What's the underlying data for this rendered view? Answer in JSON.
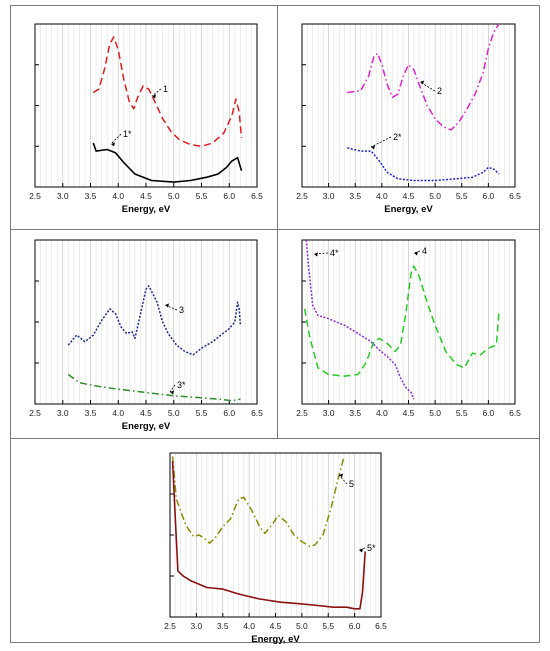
{
  "chart_data": [
    {
      "type": "line",
      "xlabel": "Energy, eV",
      "xlim": [
        2.5,
        6.5
      ],
      "xticks": [
        2.5,
        3.0,
        3.5,
        4.0,
        4.5,
        5.0,
        5.5,
        6.0,
        6.5
      ],
      "ylim": [
        0,
        1
      ],
      "series": [
        {
          "name": "1",
          "color": "#e41a1c",
          "dash": "long-dash",
          "points": [
            [
              3.55,
              0.58
            ],
            [
              3.65,
              0.6
            ],
            [
              3.75,
              0.72
            ],
            [
              3.85,
              0.88
            ],
            [
              3.92,
              0.92
            ],
            [
              4.0,
              0.84
            ],
            [
              4.1,
              0.66
            ],
            [
              4.2,
              0.52
            ],
            [
              4.28,
              0.48
            ],
            [
              4.35,
              0.55
            ],
            [
              4.45,
              0.62
            ],
            [
              4.55,
              0.6
            ],
            [
              4.65,
              0.53
            ],
            [
              4.8,
              0.42
            ],
            [
              4.95,
              0.34
            ],
            [
              5.1,
              0.29
            ],
            [
              5.3,
              0.26
            ],
            [
              5.5,
              0.25
            ],
            [
              5.7,
              0.27
            ],
            [
              5.9,
              0.33
            ],
            [
              6.05,
              0.44
            ],
            [
              6.12,
              0.54
            ],
            [
              6.18,
              0.46
            ],
            [
              6.22,
              0.3
            ]
          ]
        },
        {
          "name": "1*",
          "color": "#000000",
          "dash": "solid",
          "points": [
            [
              3.55,
              0.27
            ],
            [
              3.6,
              0.22
            ],
            [
              3.8,
              0.23
            ],
            [
              3.95,
              0.21
            ],
            [
              4.1,
              0.15
            ],
            [
              4.3,
              0.08
            ],
            [
              4.6,
              0.04
            ],
            [
              5.0,
              0.03
            ],
            [
              5.3,
              0.04
            ],
            [
              5.6,
              0.06
            ],
            [
              5.8,
              0.08
            ],
            [
              5.95,
              0.12
            ],
            [
              6.05,
              0.16
            ],
            [
              6.15,
              0.18
            ],
            [
              6.22,
              0.1
            ]
          ]
        }
      ],
      "labels": [
        "1",
        "1*"
      ]
    },
    {
      "type": "line",
      "xlabel": "Energy, eV",
      "xlim": [
        2.5,
        6.5
      ],
      "xticks": [
        2.5,
        3.0,
        3.5,
        4.0,
        4.5,
        5.0,
        5.5,
        6.0,
        6.5
      ],
      "ylim": [
        0,
        1
      ],
      "series": [
        {
          "name": "2",
          "color": "#dd22cc",
          "dash": "dash-dot",
          "points": [
            [
              3.35,
              0.58
            ],
            [
              3.6,
              0.59
            ],
            [
              3.75,
              0.68
            ],
            [
              3.85,
              0.8
            ],
            [
              3.92,
              0.82
            ],
            [
              4.0,
              0.75
            ],
            [
              4.1,
              0.63
            ],
            [
              4.2,
              0.55
            ],
            [
              4.3,
              0.57
            ],
            [
              4.4,
              0.68
            ],
            [
              4.5,
              0.75
            ],
            [
              4.6,
              0.72
            ],
            [
              4.7,
              0.63
            ],
            [
              4.85,
              0.5
            ],
            [
              5.0,
              0.42
            ],
            [
              5.15,
              0.37
            ],
            [
              5.3,
              0.35
            ],
            [
              5.45,
              0.4
            ],
            [
              5.6,
              0.48
            ],
            [
              5.75,
              0.57
            ],
            [
              5.9,
              0.7
            ],
            [
              6.0,
              0.85
            ],
            [
              6.1,
              0.95
            ],
            [
              6.2,
              1.0
            ]
          ]
        },
        {
          "name": "2*",
          "color": "#1f24cc",
          "dash": "dotted",
          "points": [
            [
              3.35,
              0.24
            ],
            [
              3.6,
              0.22
            ],
            [
              3.8,
              0.22
            ],
            [
              3.95,
              0.16
            ],
            [
              4.1,
              0.09
            ],
            [
              4.3,
              0.05
            ],
            [
              4.6,
              0.04
            ],
            [
              5.0,
              0.04
            ],
            [
              5.4,
              0.05
            ],
            [
              5.7,
              0.06
            ],
            [
              5.9,
              0.09
            ],
            [
              6.0,
              0.12
            ],
            [
              6.1,
              0.11
            ],
            [
              6.2,
              0.08
            ]
          ]
        }
      ],
      "labels": [
        "2",
        "2*"
      ]
    },
    {
      "type": "line",
      "xlabel": "Energy, eV",
      "xlim": [
        2.5,
        6.5
      ],
      "xticks": [
        2.5,
        3.0,
        3.5,
        4.0,
        4.5,
        5.0,
        5.5,
        6.0,
        6.5
      ],
      "ylim": [
        0,
        1
      ],
      "series": [
        {
          "name": "3",
          "color": "#1a2a8c",
          "dash": "dotted",
          "points": [
            [
              3.1,
              0.36
            ],
            [
              3.25,
              0.42
            ],
            [
              3.4,
              0.38
            ],
            [
              3.55,
              0.42
            ],
            [
              3.7,
              0.51
            ],
            [
              3.85,
              0.58
            ],
            [
              3.95,
              0.55
            ],
            [
              4.05,
              0.47
            ],
            [
              4.15,
              0.43
            ],
            [
              4.25,
              0.44
            ],
            [
              4.3,
              0.4
            ],
            [
              4.4,
              0.55
            ],
            [
              4.5,
              0.7
            ],
            [
              4.55,
              0.72
            ],
            [
              4.7,
              0.62
            ],
            [
              4.8,
              0.5
            ],
            [
              4.9,
              0.43
            ],
            [
              5.05,
              0.36
            ],
            [
              5.2,
              0.32
            ],
            [
              5.35,
              0.3
            ],
            [
              5.5,
              0.34
            ],
            [
              5.7,
              0.38
            ],
            [
              5.85,
              0.42
            ],
            [
              6.0,
              0.46
            ],
            [
              6.1,
              0.5
            ],
            [
              6.15,
              0.62
            ],
            [
              6.18,
              0.58
            ],
            [
              6.2,
              0.48
            ]
          ]
        },
        {
          "name": "3*",
          "color": "#2e8b2e",
          "dash": "dash-dot",
          "points": [
            [
              3.1,
              0.18
            ],
            [
              3.3,
              0.13
            ],
            [
              3.6,
              0.11
            ],
            [
              4.0,
              0.09
            ],
            [
              4.5,
              0.07
            ],
            [
              5.0,
              0.05
            ],
            [
              5.4,
              0.04
            ],
            [
              5.8,
              0.03
            ],
            [
              6.05,
              0.02
            ],
            [
              6.2,
              0.03
            ]
          ]
        }
      ],
      "labels": [
        "3",
        "3*"
      ]
    },
    {
      "type": "line",
      "xlabel": "",
      "xlim": [
        2.5,
        6.5
      ],
      "xticks": [
        2.5,
        3.0,
        3.5,
        4.0,
        4.5,
        5.0,
        5.5,
        6.0,
        6.5
      ],
      "ylim": [
        0,
        1
      ],
      "series": [
        {
          "name": "4",
          "color": "#22cc22",
          "dash": "long-dash",
          "points": [
            [
              2.55,
              0.58
            ],
            [
              2.65,
              0.4
            ],
            [
              2.8,
              0.22
            ],
            [
              3.0,
              0.18
            ],
            [
              3.3,
              0.17
            ],
            [
              3.55,
              0.18
            ],
            [
              3.7,
              0.25
            ],
            [
              3.85,
              0.38
            ],
            [
              3.95,
              0.4
            ],
            [
              4.1,
              0.37
            ],
            [
              4.25,
              0.32
            ],
            [
              4.35,
              0.36
            ],
            [
              4.45,
              0.55
            ],
            [
              4.55,
              0.8
            ],
            [
              4.6,
              0.84
            ],
            [
              4.7,
              0.78
            ],
            [
              4.85,
              0.62
            ],
            [
              5.0,
              0.48
            ],
            [
              5.2,
              0.32
            ],
            [
              5.4,
              0.24
            ],
            [
              5.55,
              0.22
            ],
            [
              5.7,
              0.31
            ],
            [
              5.85,
              0.3
            ],
            [
              6.0,
              0.34
            ],
            [
              6.15,
              0.36
            ],
            [
              6.2,
              0.57
            ]
          ]
        },
        {
          "name": "4*",
          "color": "#8a2be2",
          "dash": "dotted",
          "points": [
            [
              2.58,
              1.0
            ],
            [
              2.63,
              0.82
            ],
            [
              2.7,
              0.6
            ],
            [
              2.8,
              0.54
            ],
            [
              3.0,
              0.52
            ],
            [
              3.3,
              0.48
            ],
            [
              3.6,
              0.42
            ],
            [
              3.8,
              0.38
            ],
            [
              3.95,
              0.33
            ],
            [
              4.1,
              0.29
            ],
            [
              4.25,
              0.24
            ],
            [
              4.35,
              0.16
            ],
            [
              4.45,
              0.1
            ],
            [
              4.55,
              0.07
            ],
            [
              4.6,
              0.03
            ]
          ]
        }
      ],
      "labels": [
        "4",
        "4*"
      ]
    },
    {
      "type": "line",
      "xlabel": "Energy, eV",
      "xlim": [
        2.5,
        6.5
      ],
      "xticks": [
        2.5,
        3.0,
        3.5,
        4.0,
        4.5,
        5.0,
        5.5,
        6.0,
        6.5
      ],
      "ylim": [
        0,
        1
      ],
      "series": [
        {
          "name": "5",
          "color": "#8a8a00",
          "dash": "dash-dot",
          "points": [
            [
              2.55,
              0.98
            ],
            [
              2.62,
              0.72
            ],
            [
              2.8,
              0.56
            ],
            [
              2.95,
              0.49
            ],
            [
              3.05,
              0.5
            ],
            [
              3.15,
              0.48
            ],
            [
              3.25,
              0.45
            ],
            [
              3.35,
              0.48
            ],
            [
              3.5,
              0.55
            ],
            [
              3.65,
              0.6
            ],
            [
              3.8,
              0.72
            ],
            [
              3.9,
              0.73
            ],
            [
              4.05,
              0.65
            ],
            [
              4.2,
              0.55
            ],
            [
              4.3,
              0.51
            ],
            [
              4.45,
              0.57
            ],
            [
              4.55,
              0.62
            ],
            [
              4.7,
              0.58
            ],
            [
              4.85,
              0.5
            ],
            [
              5.0,
              0.46
            ],
            [
              5.15,
              0.43
            ],
            [
              5.25,
              0.44
            ],
            [
              5.4,
              0.5
            ],
            [
              5.55,
              0.66
            ],
            [
              5.7,
              0.86
            ],
            [
              5.8,
              0.98
            ]
          ]
        },
        {
          "name": "5*",
          "color": "#8b1010",
          "dash": "solid",
          "points": [
            [
              2.55,
              0.95
            ],
            [
              2.6,
              0.6
            ],
            [
              2.65,
              0.28
            ],
            [
              2.75,
              0.25
            ],
            [
              2.9,
              0.22
            ],
            [
              3.2,
              0.18
            ],
            [
              3.5,
              0.17
            ],
            [
              3.8,
              0.14
            ],
            [
              4.2,
              0.11
            ],
            [
              4.6,
              0.09
            ],
            [
              5.0,
              0.08
            ],
            [
              5.3,
              0.07
            ],
            [
              5.6,
              0.06
            ],
            [
              5.85,
              0.06
            ],
            [
              6.0,
              0.05
            ],
            [
              6.1,
              0.05
            ],
            [
              6.15,
              0.15
            ],
            [
              6.2,
              0.4
            ]
          ]
        }
      ],
      "labels": [
        "5",
        "5*"
      ]
    }
  ]
}
